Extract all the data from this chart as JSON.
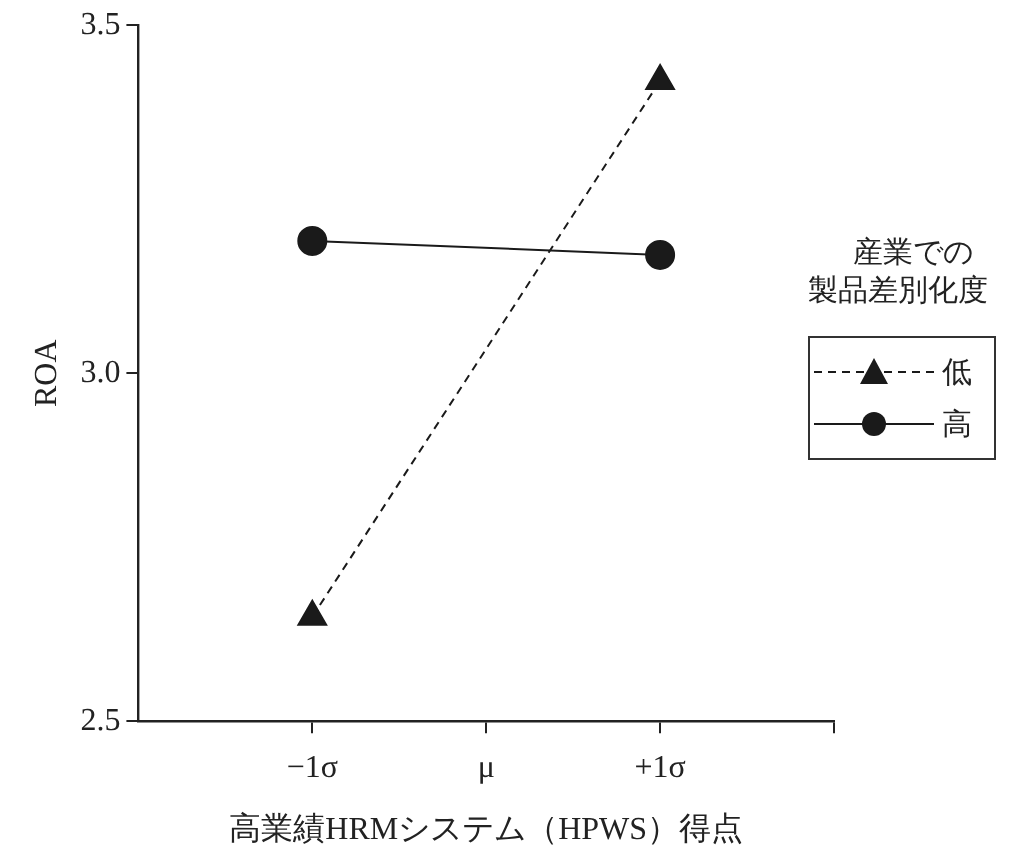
{
  "chart_data": {
    "type": "line",
    "xlabel": "高業績HRMシステム（HPWS）得点",
    "ylabel": "ROA",
    "legend_title": "産業での製品差別化度",
    "x": [
      -1,
      1
    ],
    "xlim": [
      -2,
      2
    ],
    "xticks": [
      {
        "value": -1,
        "label": "−1σ"
      },
      {
        "value": 0,
        "label": "μ"
      },
      {
        "value": 1,
        "label": "+1σ"
      },
      {
        "value": 2,
        "label": null
      }
    ],
    "ylim": [
      2.5,
      3.5
    ],
    "yticks": [
      {
        "value": 2.5,
        "label": "2.5"
      },
      {
        "value": 3,
        "label": "3.0"
      },
      {
        "value": 3.5,
        "label": "3.5"
      }
    ],
    "series": [
      {
        "name": "低",
        "color": "#1a1a1a",
        "values": [
          2.65,
          3.42
        ],
        "marker": "triangle",
        "line_style": "dashed"
      },
      {
        "name": "高",
        "color": "#1a1a1a",
        "values": [
          3.19,
          3.17
        ],
        "marker": "circle",
        "line_style": "solid"
      }
    ],
    "grid": false,
    "legend": "right"
  }
}
